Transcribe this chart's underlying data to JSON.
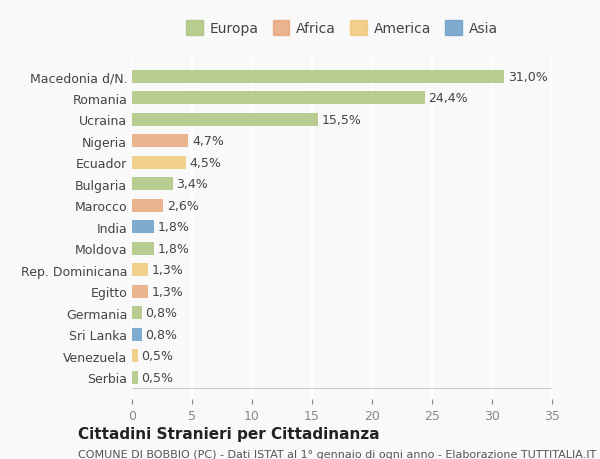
{
  "categories": [
    "Macedonia d/N.",
    "Romania",
    "Ucraina",
    "Nigeria",
    "Ecuador",
    "Bulgaria",
    "Marocco",
    "India",
    "Moldova",
    "Rep. Dominicana",
    "Egitto",
    "Germania",
    "Sri Lanka",
    "Venezuela",
    "Serbia"
  ],
  "values": [
    31.0,
    24.4,
    15.5,
    4.7,
    4.5,
    3.4,
    2.6,
    1.8,
    1.8,
    1.3,
    1.3,
    0.8,
    0.8,
    0.5,
    0.5
  ],
  "labels": [
    "31,0%",
    "24,4%",
    "15,5%",
    "4,7%",
    "4,5%",
    "3,4%",
    "2,6%",
    "1,8%",
    "1,8%",
    "1,3%",
    "1,3%",
    "0,8%",
    "0,8%",
    "0,5%",
    "0,5%"
  ],
  "colors": [
    "#adc47e",
    "#adc47e",
    "#adc47e",
    "#e8a87c",
    "#f0c97a",
    "#adc47e",
    "#e8a87c",
    "#6b9ec9",
    "#adc47e",
    "#f0c97a",
    "#e8a87c",
    "#adc47e",
    "#6b9ec9",
    "#f0c97a",
    "#adc47e"
  ],
  "legend_labels": [
    "Europa",
    "Africa",
    "America",
    "Asia"
  ],
  "legend_colors": [
    "#adc47e",
    "#e8a87c",
    "#f0c97a",
    "#6b9ec9"
  ],
  "title": "Cittadini Stranieri per Cittadinanza",
  "subtitle": "COMUNE DI BOBBIO (PC) - Dati ISTAT al 1° gennaio di ogni anno - Elaborazione TUTTITALIA.IT",
  "xlim": [
    0,
    35
  ],
  "xticks": [
    0,
    5,
    10,
    15,
    20,
    25,
    30,
    35
  ],
  "background_color": "#f9f9f9",
  "grid_color": "#ffffff",
  "bar_height": 0.6,
  "fontsize_labels": 9,
  "fontsize_title": 11,
  "fontsize_subtitle": 8,
  "fontsize_ticks": 9,
  "fontsize_legend": 10
}
